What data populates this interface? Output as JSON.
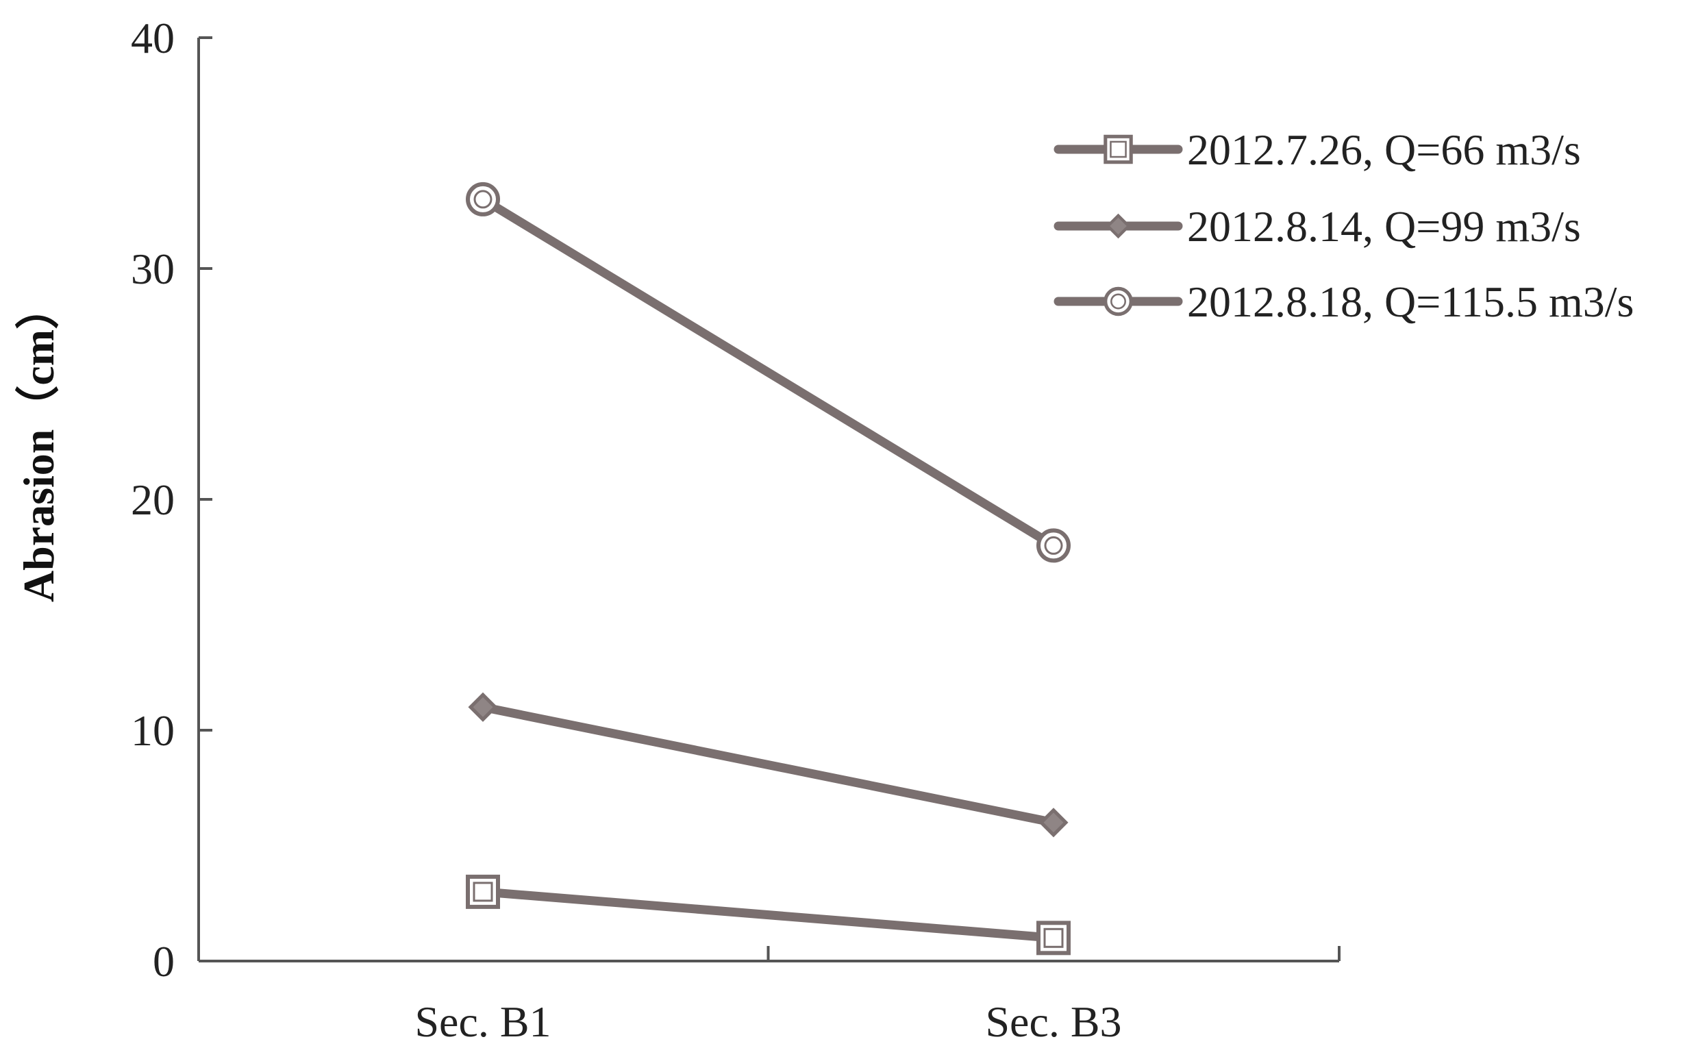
{
  "chart_data": {
    "type": "line",
    "categories": [
      "Sec. B1",
      "Sec. B3"
    ],
    "series": [
      {
        "name": "2012.7.26, Q=66 m3/s",
        "values": [
          3,
          1
        ],
        "marker": "square"
      },
      {
        "name": "2012.8.14, Q=99 m3/s",
        "values": [
          11,
          6
        ],
        "marker": "diamond"
      },
      {
        "name": "2012.8.18, Q=115.5 m3/s",
        "values": [
          33,
          18
        ],
        "marker": "circle"
      }
    ],
    "title": "",
    "xlabel": "",
    "ylabel": "Abrasion（cm）",
    "ylim": [
      0,
      40
    ],
    "yticks": [
      0,
      10,
      20,
      30,
      40
    ],
    "grid": false,
    "legend_position": "top-right",
    "colors": {
      "line": "#7a6f6f",
      "marker_fill": "#8f8585",
      "axis": "#555555"
    }
  }
}
